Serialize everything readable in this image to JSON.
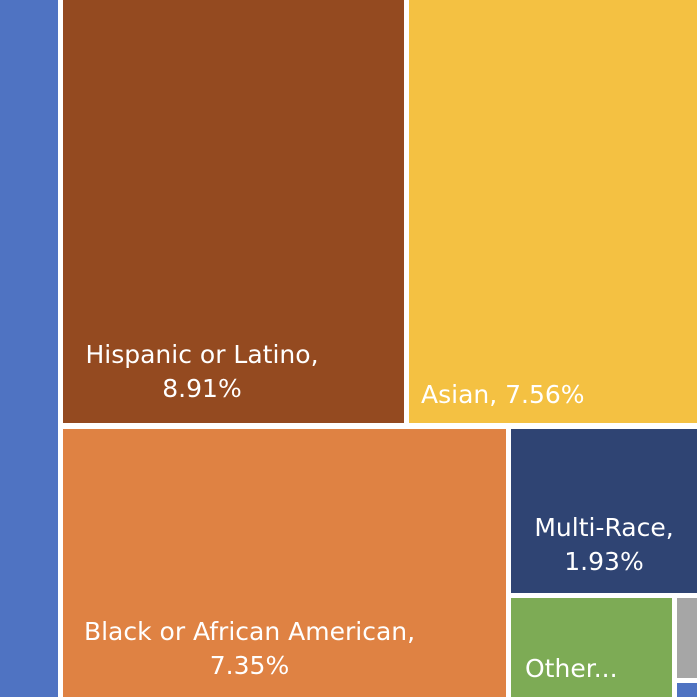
{
  "chart_data": {
    "type": "treemap",
    "title": "",
    "items": [
      {
        "name": "",
        "value": "",
        "color": "#4f73c2"
      },
      {
        "name": "Hispanic or Latino,",
        "value": "8.91%",
        "color": "#944a20"
      },
      {
        "name": "Asian,",
        "value": "7.56%",
        "color": "#f4c142"
      },
      {
        "name": "Black or African American,",
        "value": "7.35%",
        "color": "#df8243"
      },
      {
        "name": "Multi-Race,",
        "value": "1.93%",
        "color": "#2f4473"
      },
      {
        "name": "Other...",
        "value": "",
        "color": "#7dab55"
      },
      {
        "name": "",
        "value": "",
        "color": "#a6a6a6"
      }
    ]
  }
}
